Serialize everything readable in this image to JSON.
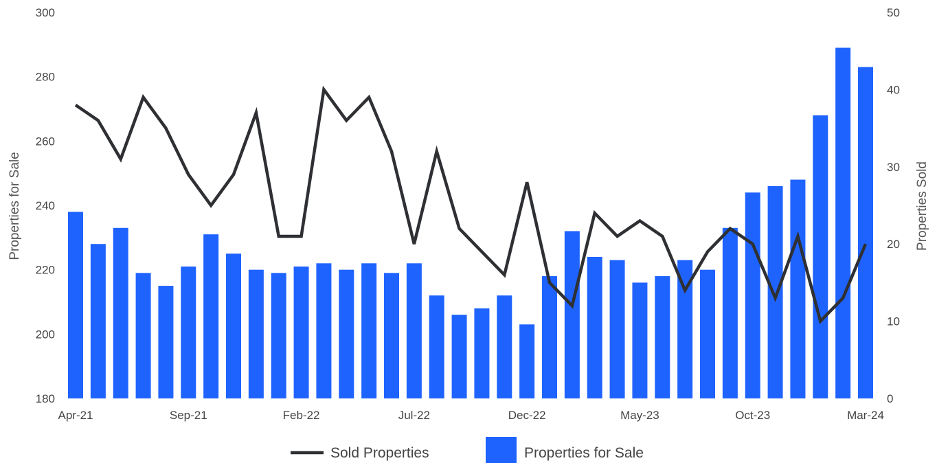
{
  "chart_data": {
    "type": "bar",
    "categories": [
      "Apr-21",
      "May-21",
      "Jun-21",
      "Jul-21",
      "Aug-21",
      "Sep-21",
      "Oct-21",
      "Nov-21",
      "Dec-21",
      "Jan-22",
      "Feb-22",
      "Mar-22",
      "Apr-22",
      "May-22",
      "Jun-22",
      "Jul-22",
      "Aug-22",
      "Sep-22",
      "Oct-22",
      "Nov-22",
      "Dec-22",
      "Jan-23",
      "Feb-23",
      "Mar-23",
      "Apr-23",
      "May-23",
      "Jun-23",
      "Jul-23",
      "Aug-23",
      "Sep-23",
      "Oct-23",
      "Nov-23",
      "Dec-23",
      "Jan-24",
      "Feb-24",
      "Mar-24"
    ],
    "x_tick_labels": [
      "Apr-21",
      "Sep-21",
      "Feb-22",
      "Jul-22",
      "Dec-22",
      "May-23",
      "Oct-23",
      "Mar-24"
    ],
    "series": [
      {
        "name": "Properties for Sale",
        "type": "bar",
        "axis": "left",
        "color": "#1f63ff",
        "values": [
          238,
          228,
          233,
          219,
          215,
          221,
          231,
          225,
          220,
          219,
          221,
          222,
          220,
          222,
          219,
          222,
          212,
          206,
          208,
          212,
          203,
          218,
          232,
          224,
          223,
          216,
          218,
          223,
          220,
          233,
          244,
          246,
          248,
          268,
          289,
          283
        ]
      },
      {
        "name": "Sold Properties",
        "type": "line",
        "axis": "right",
        "color": "#2e3033",
        "values": [
          38,
          36,
          31,
          39,
          35,
          29,
          25,
          29,
          37,
          21,
          21,
          40,
          36,
          39,
          32,
          20,
          32,
          22,
          19,
          16,
          28,
          15,
          12,
          24,
          21,
          23,
          21,
          14,
          19,
          22,
          20,
          13,
          21,
          10,
          13,
          20
        ]
      }
    ],
    "y_left": {
      "label": "Properties for Sale",
      "lim": [
        180,
        300
      ],
      "ticks": [
        "180",
        "200",
        "220",
        "240",
        "260",
        "280",
        "300"
      ]
    },
    "y_right": {
      "label": "Properties Sold",
      "lim": [
        0,
        50
      ],
      "ticks": [
        "0",
        "10",
        "20",
        "30",
        "40",
        "50"
      ]
    },
    "legend": {
      "position": "bottom",
      "items": [
        {
          "label": "Sold Properties",
          "symbol": "line",
          "color": "#2e3033"
        },
        {
          "label": "Properties for Sale",
          "symbol": "box",
          "color": "#1f63ff"
        }
      ]
    },
    "grid": false
  }
}
